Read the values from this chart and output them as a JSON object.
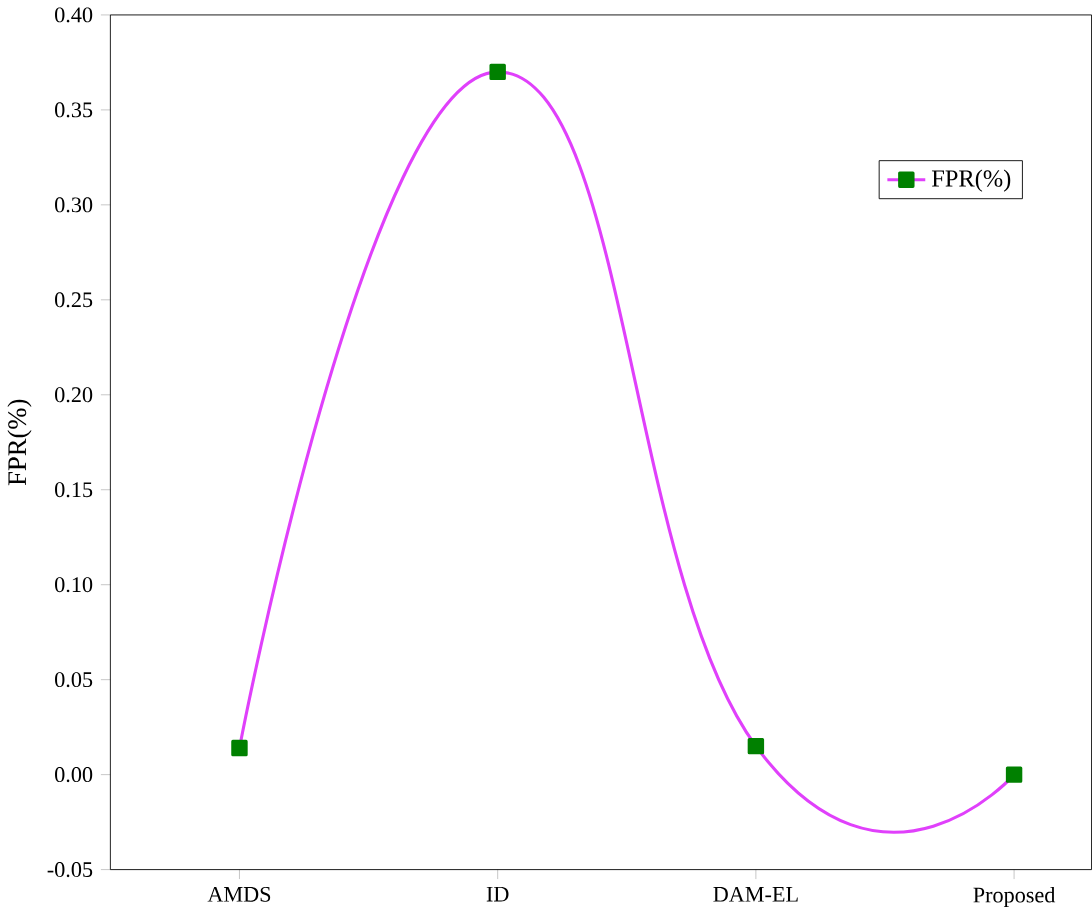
{
  "chart_data": {
    "type": "line",
    "ylabel": "FPR(%)",
    "categories": [
      "AMDS",
      "ID",
      "DAM-EL",
      "Proposed"
    ],
    "series": [
      {
        "name": "FPR(%)",
        "color": "#e040fb",
        "values": [
          0.014,
          0.37,
          0.015,
          0.0
        ]
      }
    ],
    "marker": "square",
    "line_style": "solid",
    "legend": "top right",
    "grid": false,
    "ylim": [
      -0.05,
      0.4
    ],
    "yticks": [
      {
        "value": -0.05,
        "label": "-0.05"
      },
      {
        "value": 0,
        "label": "0.00"
      },
      {
        "value": 0.05,
        "label": "0.05"
      },
      {
        "value": 0.1,
        "label": "0.10"
      },
      {
        "value": 0.15,
        "label": "0.15"
      },
      {
        "value": 0.2,
        "label": "0.20"
      },
      {
        "value": 0.25,
        "label": "0.25"
      },
      {
        "value": 0.3,
        "label": "0.30"
      },
      {
        "value": 0.35,
        "label": "0.35"
      },
      {
        "value": 0.4,
        "label": "0.40"
      }
    ]
  }
}
